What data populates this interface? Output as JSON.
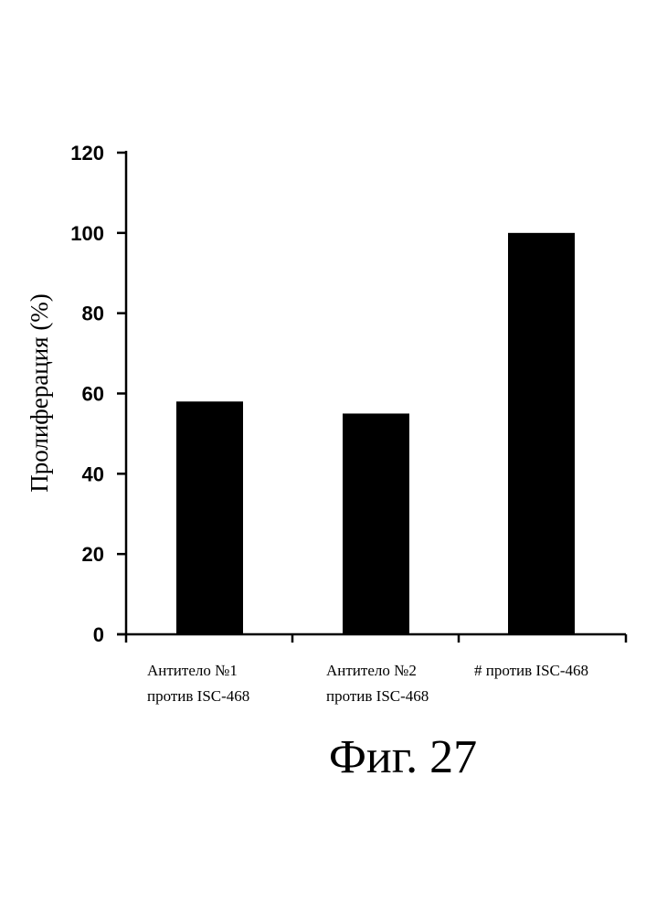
{
  "chart_data": {
    "type": "bar",
    "categories": [
      [
        "Антитело №1",
        "против ISC-468"
      ],
      [
        "Антитело №2",
        "против ISC-468"
      ],
      [
        "# против ISC-468"
      ]
    ],
    "values": [
      58,
      55,
      100
    ],
    "title": "",
    "xlabel": "",
    "ylabel": "Пролиферация (%)",
    "ylim": [
      0,
      120
    ],
    "yticks": [
      0,
      20,
      40,
      60,
      80,
      100,
      120
    ],
    "grid": false,
    "bar_color": "#000000"
  },
  "figure": {
    "caption": "Фиг. 27"
  }
}
